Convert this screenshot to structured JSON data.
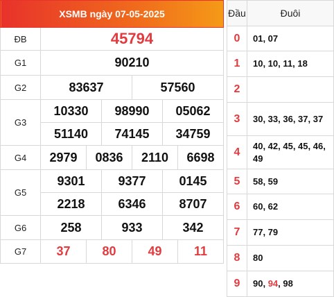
{
  "title": "XSMB ngày 07-05-2025",
  "labels": {
    "db": "ĐB",
    "g1": "G1",
    "g2": "G2",
    "g3": "G3",
    "g4": "G4",
    "g5": "G5",
    "g6": "G6",
    "g7": "G7"
  },
  "prizes": {
    "db": "45794",
    "g1": "90210",
    "g2": [
      "83637",
      "57560"
    ],
    "g3": [
      "10330",
      "98990",
      "05062",
      "51140",
      "74145",
      "34759"
    ],
    "g4": [
      "2979",
      "0836",
      "2110",
      "6698"
    ],
    "g5": [
      "9301",
      "9377",
      "0145",
      "2218",
      "6346",
      "8707"
    ],
    "g6": [
      "258",
      "933",
      "342"
    ],
    "g7": [
      "37",
      "80",
      "49",
      "11"
    ]
  },
  "loto": {
    "head_dau": "Đầu",
    "head_duoi": "Đuôi",
    "rows": [
      {
        "dau": "0",
        "duoi": "01, 07"
      },
      {
        "dau": "1",
        "duoi": "10, 10, 11, 18"
      },
      {
        "dau": "2",
        "duoi": ""
      },
      {
        "dau": "3",
        "duoi": "30, 33, 36, 37, 37"
      },
      {
        "dau": "4",
        "duoi": "40, 42, 45, 45, 46, 49"
      },
      {
        "dau": "5",
        "duoi": "58, 59"
      },
      {
        "dau": "6",
        "duoi": "60, 62"
      },
      {
        "dau": "7",
        "duoi": "77, 79"
      },
      {
        "dau": "8",
        "duoi": "80"
      },
      {
        "dau": "9",
        "duoi_a": "90, ",
        "duoi_b": "94",
        "duoi_c": ", 98"
      }
    ]
  },
  "colors": {
    "accent_red": "#e23b3f",
    "header_from": "#e8322b",
    "header_to": "#f59a17"
  }
}
